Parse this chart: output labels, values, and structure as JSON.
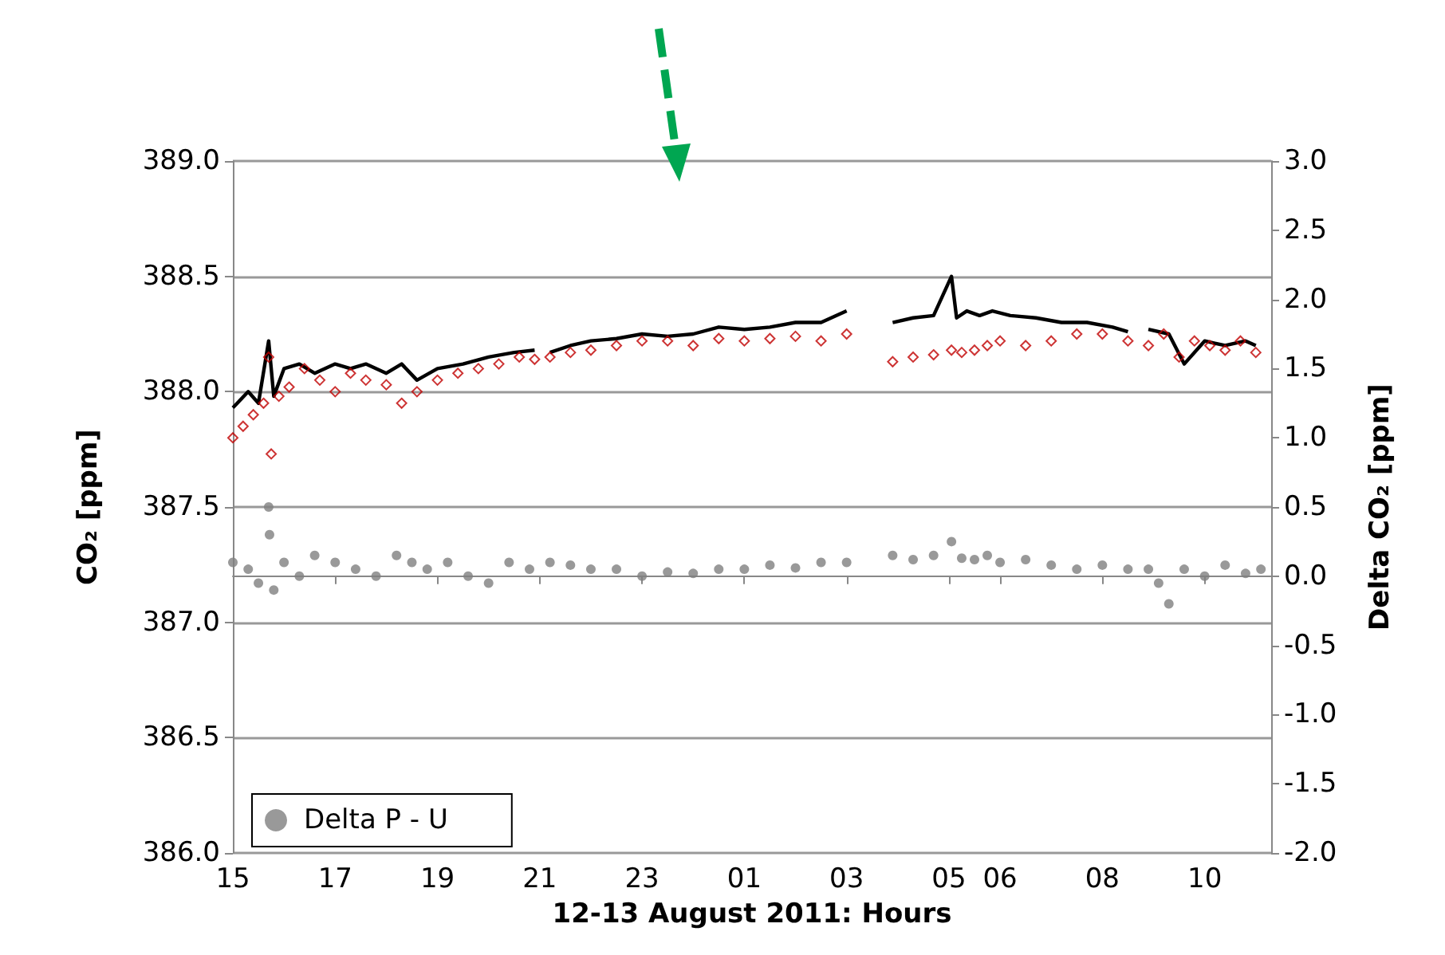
{
  "chart_data": {
    "type": "line",
    "xlabel": "12-13 August 2011: Hours",
    "ylabel": "CO₂ [ppm]",
    "y2label": "Delta CO₂ [ppm]",
    "xlim": [
      "2011-08-12T15:00",
      "2011-08-13T11:18"
    ],
    "xticks": [
      {
        "value": "2011-08-12T15:00",
        "label": "15"
      },
      {
        "value": "2011-08-12T17:00",
        "label": "17"
      },
      {
        "value": "2011-08-12T19:00",
        "label": "19"
      },
      {
        "value": "2011-08-12T21:00",
        "label": "21"
      },
      {
        "value": "2011-08-12T23:00",
        "label": "23"
      },
      {
        "value": "2011-08-13T01:00",
        "label": "01"
      },
      {
        "value": "2011-08-13T03:00",
        "label": "03"
      },
      {
        "value": "2011-08-13T05:00",
        "label": "05"
      },
      {
        "value": "2011-08-13T06:00",
        "label": "06"
      },
      {
        "value": "2011-08-13T08:00",
        "label": "08"
      },
      {
        "value": "2011-08-13T10:00",
        "label": "10"
      }
    ],
    "ylim": [
      386,
      389
    ],
    "yticks": [
      {
        "value": 386,
        "label": "386.0"
      },
      {
        "value": 386.5,
        "label": "386.5"
      },
      {
        "value": 387,
        "label": "387.0"
      },
      {
        "value": 387.5,
        "label": "387.5"
      },
      {
        "value": 388,
        "label": "388.0"
      },
      {
        "value": 388.5,
        "label": "388.5"
      },
      {
        "value": 389,
        "label": "389.0"
      }
    ],
    "y2lim": [
      -2,
      3
    ],
    "y2ticks": [
      {
        "value": -2,
        "label": "-2.0"
      },
      {
        "value": -1.5,
        "label": "-1.5"
      },
      {
        "value": -1,
        "label": "-1.0"
      },
      {
        "value": -0.5,
        "label": "-0.5"
      },
      {
        "value": 0,
        "label": "0.0"
      },
      {
        "value": 0.5,
        "label": "0.5"
      },
      {
        "value": 1,
        "label": "1.0"
      },
      {
        "value": 1.5,
        "label": "1.5"
      },
      {
        "value": 2,
        "label": "2.0"
      },
      {
        "value": 2.5,
        "label": "2.5"
      },
      {
        "value": 3,
        "label": "3.0"
      }
    ],
    "grid": "y",
    "legend": "bottom left",
    "series": [
      {
        "type": "scatter",
        "marker": "diamond",
        "color": "#c00000",
        "x": [
          "2011-08-12T15:00",
          "2011-08-12T15:12",
          "2011-08-12T15:24",
          "2011-08-12T15:36",
          "2011-08-12T15:42",
          "2011-08-12T15:45",
          "2011-08-12T15:54",
          "2011-08-12T16:06",
          "2011-08-12T16:24",
          "2011-08-12T16:42",
          "2011-08-12T17:00",
          "2011-08-12T17:18",
          "2011-08-12T17:36",
          "2011-08-12T18:00",
          "2011-08-12T18:18",
          "2011-08-12T18:36",
          "2011-08-12T19:00",
          "2011-08-12T19:24",
          "2011-08-12T19:48",
          "2011-08-12T20:12",
          "2011-08-12T20:36",
          "2011-08-12T20:54",
          "2011-08-12T21:12",
          "2011-08-12T21:36",
          "2011-08-12T22:00",
          "2011-08-12T22:30",
          "2011-08-12T23:00",
          "2011-08-12T23:30",
          "2011-08-13T00:00",
          "2011-08-13T00:30",
          "2011-08-13T01:00",
          "2011-08-13T01:30",
          "2011-08-13T02:00",
          "2011-08-13T02:30",
          "2011-08-13T03:00",
          "2011-08-13T03:54",
          "2011-08-13T04:18",
          "2011-08-13T04:42",
          "2011-08-13T05:03",
          "2011-08-13T05:15",
          "2011-08-13T05:30",
          "2011-08-13T05:45",
          "2011-08-13T06:00",
          "2011-08-13T06:30",
          "2011-08-13T07:00",
          "2011-08-13T07:30",
          "2011-08-13T08:00",
          "2011-08-13T08:30",
          "2011-08-13T08:54",
          "2011-08-13T09:12",
          "2011-08-13T09:30",
          "2011-08-13T09:48",
          "2011-08-13T10:06",
          "2011-08-13T10:24",
          "2011-08-13T10:42",
          "2011-08-13T11:00"
        ],
        "values": [
          387.8,
          387.85,
          387.9,
          387.95,
          388.15,
          387.73,
          387.98,
          388.02,
          388.1,
          388.05,
          388.0,
          388.08,
          388.05,
          388.03,
          387.95,
          388.0,
          388.05,
          388.08,
          388.1,
          388.12,
          388.15,
          388.14,
          388.15,
          388.17,
          388.18,
          388.2,
          388.22,
          388.22,
          388.2,
          388.23,
          388.22,
          388.23,
          388.24,
          388.22,
          388.25,
          388.13,
          388.15,
          388.16,
          388.18,
          388.17,
          388.18,
          388.2,
          388.22,
          388.2,
          388.22,
          388.25,
          388.25,
          388.22,
          388.2,
          388.25,
          388.15,
          388.22,
          388.2,
          388.18,
          388.22,
          388.17
        ]
      },
      {
        "marker": "none",
        "color": "#000000",
        "x": [
          "2011-08-12T15:00",
          "2011-08-12T15:18",
          "2011-08-12T15:30",
          "2011-08-12T15:42",
          "2011-08-12T15:48",
          "2011-08-12T16:00",
          "2011-08-12T16:18",
          "2011-08-12T16:36",
          "2011-08-12T17:00",
          "2011-08-12T17:18",
          "2011-08-12T17:36",
          "2011-08-12T18:00",
          "2011-08-12T18:18",
          "2011-08-12T18:36",
          "2011-08-12T19:00",
          "2011-08-12T19:30",
          "2011-08-12T20:00",
          "2011-08-12T20:30",
          "2011-08-12T20:54",
          "2011-08-12T21:03",
          "2011-08-12T21:12",
          "2011-08-12T21:36",
          "2011-08-12T22:00",
          "2011-08-12T22:30",
          "2011-08-12T23:00",
          "2011-08-12T23:30",
          "2011-08-13T00:00",
          "2011-08-13T00:30",
          "2011-08-13T01:00",
          "2011-08-13T01:30",
          "2011-08-13T02:00",
          "2011-08-13T02:30",
          "2011-08-13T03:00",
          "2011-08-13T03:24",
          "2011-08-13T03:54",
          "2011-08-13T04:18",
          "2011-08-13T04:42",
          "2011-08-13T05:03",
          "2011-08-13T05:09",
          "2011-08-13T05:21",
          "2011-08-13T05:36",
          "2011-08-13T05:51",
          "2011-08-13T06:12",
          "2011-08-13T06:42",
          "2011-08-13T07:12",
          "2011-08-13T07:42",
          "2011-08-13T08:12",
          "2011-08-13T08:30",
          "2011-08-13T08:42",
          "2011-08-13T08:54",
          "2011-08-13T09:18",
          "2011-08-13T09:36",
          "2011-08-13T10:00",
          "2011-08-13T10:24",
          "2011-08-13T10:48",
          "2011-08-13T11:00"
        ],
        "values": [
          387.93,
          388.0,
          387.95,
          388.22,
          387.98,
          388.1,
          388.12,
          388.08,
          388.12,
          388.1,
          388.12,
          388.08,
          388.12,
          388.05,
          388.1,
          388.12,
          388.15,
          388.17,
          388.18,
          null,
          388.17,
          388.2,
          388.22,
          388.23,
          388.25,
          388.24,
          388.25,
          388.28,
          388.27,
          388.28,
          388.3,
          388.3,
          388.35,
          null,
          388.3,
          388.32,
          388.33,
          388.5,
          388.32,
          388.35,
          388.33,
          388.35,
          388.33,
          388.32,
          388.3,
          388.3,
          388.28,
          388.26,
          null,
          388.27,
          388.25,
          388.12,
          388.22,
          388.2,
          388.22,
          388.2
        ]
      },
      {
        "type": "scatter",
        "axis": "y2",
        "marker": "circle",
        "name": "Delta P - U",
        "color": "#808080",
        "x": [
          "2011-08-12T15:00",
          "2011-08-12T15:18",
          "2011-08-12T15:30",
          "2011-08-12T15:42",
          "2011-08-12T15:43",
          "2011-08-12T15:48",
          "2011-08-12T16:00",
          "2011-08-12T16:18",
          "2011-08-12T16:36",
          "2011-08-12T17:00",
          "2011-08-12T17:24",
          "2011-08-12T17:48",
          "2011-08-12T18:12",
          "2011-08-12T18:30",
          "2011-08-12T18:48",
          "2011-08-12T19:12",
          "2011-08-12T19:36",
          "2011-08-12T20:00",
          "2011-08-12T20:24",
          "2011-08-12T20:48",
          "2011-08-12T21:12",
          "2011-08-12T21:36",
          "2011-08-12T22:00",
          "2011-08-12T22:30",
          "2011-08-12T23:00",
          "2011-08-12T23:30",
          "2011-08-13T00:00",
          "2011-08-13T00:30",
          "2011-08-13T01:00",
          "2011-08-13T01:30",
          "2011-08-13T02:00",
          "2011-08-13T02:30",
          "2011-08-13T03:00",
          "2011-08-13T03:54",
          "2011-08-13T04:18",
          "2011-08-13T04:42",
          "2011-08-13T05:03",
          "2011-08-13T05:15",
          "2011-08-13T05:30",
          "2011-08-13T05:45",
          "2011-08-13T06:00",
          "2011-08-13T06:30",
          "2011-08-13T07:00",
          "2011-08-13T07:30",
          "2011-08-13T08:00",
          "2011-08-13T08:30",
          "2011-08-13T08:54",
          "2011-08-13T09:06",
          "2011-08-13T09:18",
          "2011-08-13T09:36",
          "2011-08-13T10:00",
          "2011-08-13T10:24",
          "2011-08-13T10:48",
          "2011-08-13T11:06"
        ],
        "values": [
          0.1,
          0.05,
          -0.05,
          0.5,
          0.3,
          -0.1,
          0.1,
          0.0,
          0.15,
          0.1,
          0.05,
          0.0,
          0.15,
          0.1,
          0.05,
          0.1,
          0.0,
          -0.05,
          0.1,
          0.05,
          0.1,
          0.08,
          0.05,
          0.05,
          0.0,
          0.03,
          0.02,
          0.05,
          0.05,
          0.08,
          0.06,
          0.1,
          0.1,
          0.15,
          0.12,
          0.15,
          0.25,
          0.13,
          0.12,
          0.15,
          0.1,
          0.12,
          0.08,
          0.05,
          0.08,
          0.05,
          0.05,
          -0.05,
          -0.2,
          0.05,
          0.0,
          0.08,
          0.02,
          0.05
        ]
      }
    ]
  }
}
